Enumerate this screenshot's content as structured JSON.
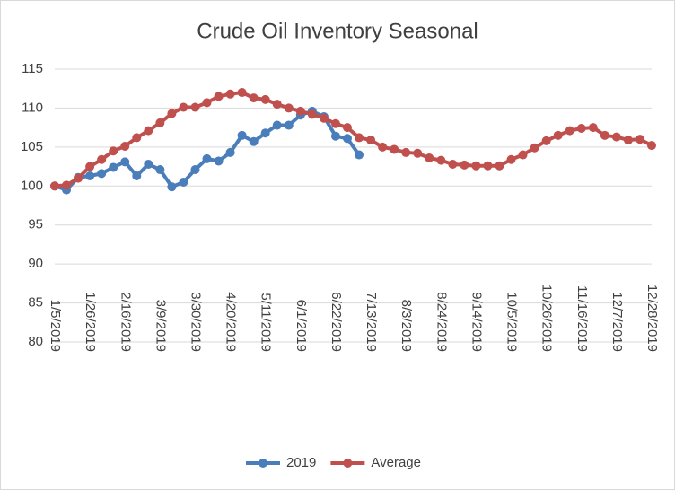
{
  "chart_data": {
    "type": "line",
    "title": "Crude Oil Inventory Seasonal",
    "categories": [
      "1/5/2019",
      null,
      null,
      "1/26/2019",
      null,
      null,
      "2/16/2019",
      null,
      null,
      "3/9/2019",
      null,
      null,
      "3/30/2019",
      null,
      null,
      "4/20/2019",
      null,
      null,
      "5/11/2019",
      null,
      null,
      "6/1/2019",
      null,
      null,
      "6/22/2019",
      null,
      null,
      "7/13/2019",
      null,
      null,
      "8/3/2019",
      null,
      null,
      "8/24/2019",
      null,
      null,
      "9/14/2019",
      null,
      null,
      "10/5/2019",
      null,
      null,
      "10/26/2019",
      null,
      null,
      "11/16/2019",
      null,
      null,
      "12/7/2019",
      null,
      null,
      "12/28/2019"
    ],
    "series": [
      {
        "name": "2019",
        "color": "#4a7ebb",
        "values": [
          100,
          99.5,
          101.1,
          101.3,
          101.6,
          102.4,
          103.1,
          101.3,
          102.8,
          102.1,
          99.9,
          100.5,
          102.1,
          103.5,
          103.2,
          104.3,
          106.5,
          105.7,
          106.8,
          107.8,
          107.8,
          109.1,
          109.6,
          108.9,
          106.4,
          106.1,
          104.0,
          null,
          null,
          null,
          null,
          null,
          null,
          null,
          null,
          null,
          null,
          null,
          null,
          null,
          null,
          null,
          null,
          null,
          null,
          null,
          null,
          null,
          null,
          null,
          null,
          null
        ]
      },
      {
        "name": "Average",
        "color": "#c0504d",
        "values": [
          100,
          100.1,
          101.0,
          102.5,
          103.4,
          104.5,
          105.1,
          106.2,
          107.1,
          108.1,
          109.3,
          110.1,
          110.1,
          110.7,
          111.5,
          111.8,
          112.0,
          111.3,
          111.1,
          110.5,
          110.0,
          109.6,
          109.2,
          108.7,
          108.0,
          107.5,
          106.2,
          105.9,
          105.0,
          104.7,
          104.3,
          104.2,
          103.6,
          103.3,
          102.8,
          102.7,
          102.6,
          102.6,
          102.6,
          103.4,
          104.0,
          104.9,
          105.8,
          106.5,
          107.1,
          107.4,
          107.5,
          106.5,
          106.3,
          105.9,
          106.0,
          105.2
        ]
      }
    ],
    "ylim": [
      80,
      115
    ],
    "yticks": [
      80,
      85,
      90,
      95,
      100,
      105,
      110,
      115
    ],
    "grid": true,
    "legend": "bottom"
  }
}
